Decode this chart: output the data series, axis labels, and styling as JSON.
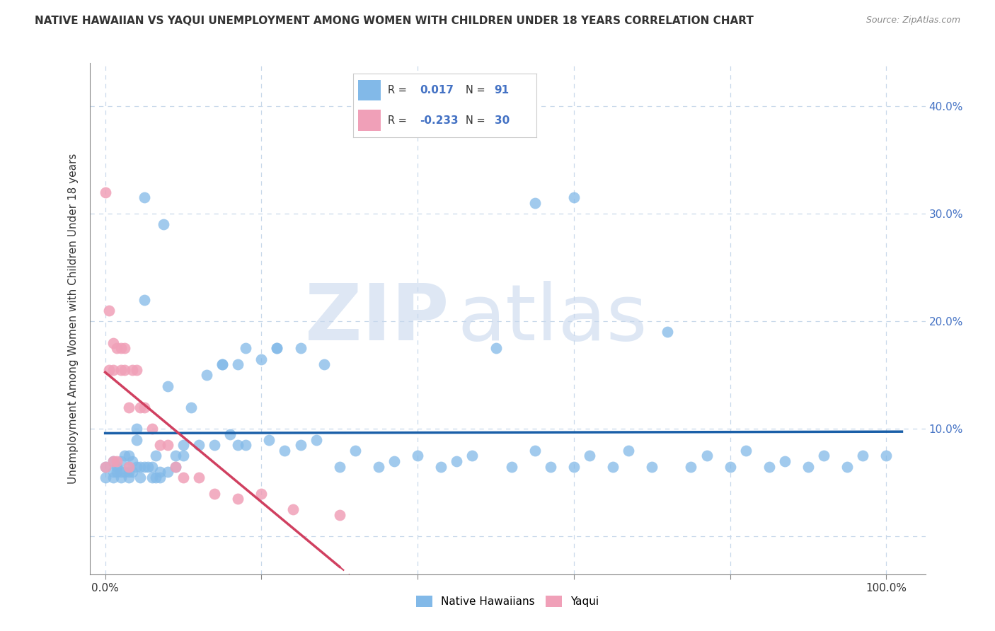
{
  "title": "NATIVE HAWAIIAN VS YAQUI UNEMPLOYMENT AMONG WOMEN WITH CHILDREN UNDER 18 YEARS CORRELATION CHART",
  "source": "Source: ZipAtlas.com",
  "ylabel": "Unemployment Among Women with Children Under 18 years",
  "xlim": [
    -0.02,
    1.05
  ],
  "ylim": [
    -0.035,
    0.44
  ],
  "color_hawaiian": "#82b9e8",
  "color_yaqui": "#f0a0b8",
  "trendline_color_hawaiian": "#1a5fa8",
  "trendline_color_yaqui": "#d04060",
  "background_color": "#ffffff",
  "grid_color": "#c8d8ea",
  "nh_x": [
    0.0,
    0.0,
    0.01,
    0.01,
    0.01,
    0.015,
    0.015,
    0.02,
    0.02,
    0.02,
    0.025,
    0.025,
    0.03,
    0.03,
    0.03,
    0.03,
    0.035,
    0.035,
    0.04,
    0.04,
    0.04,
    0.045,
    0.045,
    0.05,
    0.05,
    0.055,
    0.06,
    0.06,
    0.065,
    0.065,
    0.07,
    0.07,
    0.075,
    0.08,
    0.08,
    0.09,
    0.09,
    0.1,
    0.1,
    0.11,
    0.12,
    0.13,
    0.14,
    0.15,
    0.16,
    0.17,
    0.18,
    0.2,
    0.21,
    0.22,
    0.23,
    0.25,
    0.27,
    0.28,
    0.3,
    0.32,
    0.35,
    0.37,
    0.4,
    0.43,
    0.45,
    0.47,
    0.5,
    0.52,
    0.55,
    0.57,
    0.6,
    0.62,
    0.65,
    0.67,
    0.7,
    0.72,
    0.75,
    0.77,
    0.8,
    0.82,
    0.85,
    0.87,
    0.9,
    0.92,
    0.95,
    0.97,
    1.0,
    0.05,
    0.55,
    0.6,
    0.18,
    0.22,
    0.15,
    0.17,
    0.25
  ],
  "nh_y": [
    0.055,
    0.065,
    0.055,
    0.06,
    0.07,
    0.06,
    0.065,
    0.055,
    0.06,
    0.07,
    0.06,
    0.075,
    0.055,
    0.06,
    0.065,
    0.075,
    0.06,
    0.07,
    0.065,
    0.1,
    0.09,
    0.055,
    0.065,
    0.065,
    0.22,
    0.065,
    0.055,
    0.065,
    0.055,
    0.075,
    0.06,
    0.055,
    0.29,
    0.06,
    0.14,
    0.065,
    0.075,
    0.075,
    0.085,
    0.12,
    0.085,
    0.15,
    0.085,
    0.16,
    0.095,
    0.16,
    0.085,
    0.165,
    0.09,
    0.175,
    0.08,
    0.175,
    0.09,
    0.16,
    0.065,
    0.08,
    0.065,
    0.07,
    0.075,
    0.065,
    0.07,
    0.075,
    0.175,
    0.065,
    0.08,
    0.065,
    0.065,
    0.075,
    0.065,
    0.08,
    0.065,
    0.19,
    0.065,
    0.075,
    0.065,
    0.08,
    0.065,
    0.07,
    0.065,
    0.075,
    0.065,
    0.075,
    0.075,
    0.315,
    0.31,
    0.315,
    0.175,
    0.175,
    0.16,
    0.085,
    0.085
  ],
  "yq_x": [
    0.0,
    0.0,
    0.005,
    0.005,
    0.01,
    0.01,
    0.01,
    0.015,
    0.015,
    0.02,
    0.02,
    0.025,
    0.025,
    0.03,
    0.03,
    0.035,
    0.04,
    0.045,
    0.05,
    0.06,
    0.07,
    0.08,
    0.09,
    0.1,
    0.12,
    0.14,
    0.17,
    0.2,
    0.24,
    0.3
  ],
  "yq_y": [
    0.32,
    0.065,
    0.21,
    0.155,
    0.18,
    0.155,
    0.07,
    0.175,
    0.07,
    0.175,
    0.155,
    0.155,
    0.175,
    0.12,
    0.065,
    0.155,
    0.155,
    0.12,
    0.12,
    0.1,
    0.085,
    0.085,
    0.065,
    0.055,
    0.055,
    0.04,
    0.035,
    0.04,
    0.025,
    0.02
  ]
}
